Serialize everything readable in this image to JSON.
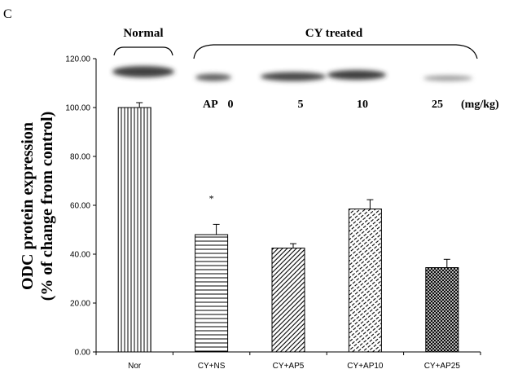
{
  "panel_label": "C",
  "blot": {
    "normal_label": "Normal",
    "treated_label": "CY treated",
    "dose_prefix": "AP",
    "doses": [
      "0",
      "5",
      "10",
      "25"
    ],
    "unit": "(mg/kg)"
  },
  "chart_data": {
    "type": "bar",
    "categories": [
      "Nor",
      "CY+NS",
      "CY+AP5",
      "CY+AP10",
      "CY+AP25"
    ],
    "values": [
      100.0,
      48.0,
      42.5,
      58.5,
      34.5
    ],
    "errors": [
      2.0,
      4.2,
      1.8,
      3.8,
      3.4
    ],
    "ylabel_line1": "ODC protein expression",
    "ylabel_line2": "(% of change from control)",
    "ylim": [
      0,
      120
    ],
    "yticks": [
      "0.00",
      "20.00",
      "40.00",
      "60.00",
      "80.00",
      "100.00",
      "120.00"
    ],
    "annotations": [
      {
        "category": "CY+NS",
        "text": "*"
      }
    ],
    "grid": false
  }
}
